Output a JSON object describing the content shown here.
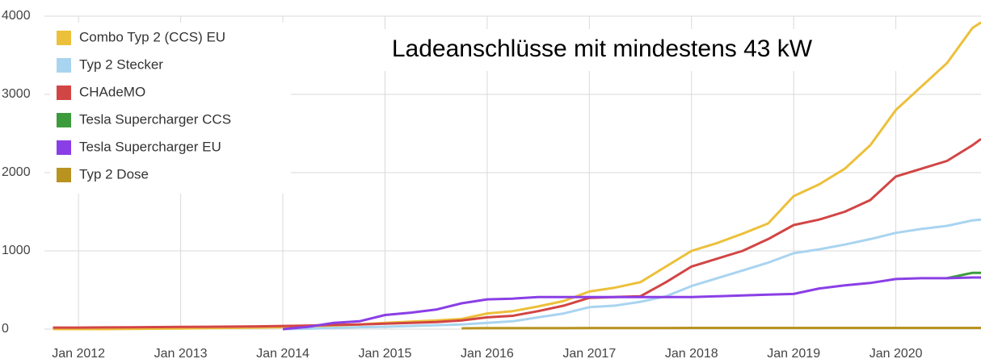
{
  "chart_data": {
    "type": "line",
    "title": "Ladeanschlüsse mit mindestens 43 kW",
    "x": [
      "2011-10",
      "2012-01",
      "2012-04",
      "2012-07",
      "2012-10",
      "2013-01",
      "2013-04",
      "2013-07",
      "2013-10",
      "2014-01",
      "2014-04",
      "2014-07",
      "2014-10",
      "2015-01",
      "2015-04",
      "2015-07",
      "2015-10",
      "2016-01",
      "2016-04",
      "2016-07",
      "2016-10",
      "2017-01",
      "2017-04",
      "2017-07",
      "2017-10",
      "2018-01",
      "2018-04",
      "2018-07",
      "2018-10",
      "2019-01",
      "2019-04",
      "2019-07",
      "2019-10",
      "2020-01",
      "2020-04",
      "2020-07",
      "2020-10",
      "2020-11"
    ],
    "series": [
      {
        "name": "Combo Typ 2 (CCS) EU",
        "color": "#ecc03a",
        "values": [
          0,
          0,
          0,
          2,
          5,
          8,
          12,
          15,
          20,
          25,
          35,
          45,
          60,
          80,
          95,
          110,
          130,
          200,
          230,
          290,
          360,
          480,
          530,
          600,
          800,
          1000,
          1100,
          1220,
          1350,
          1700,
          1850,
          2050,
          2350,
          2800,
          3100,
          3400,
          3850,
          3920
        ]
      },
      {
        "name": "Typ 2 Stecker",
        "color": "#a9d4f0",
        "values": [
          null,
          null,
          null,
          null,
          null,
          null,
          null,
          null,
          null,
          0,
          5,
          15,
          25,
          30,
          40,
          50,
          60,
          80,
          100,
          150,
          200,
          280,
          300,
          350,
          420,
          550,
          650,
          750,
          850,
          970,
          1020,
          1080,
          1150,
          1230,
          1280,
          1320,
          1390,
          1400
        ]
      },
      {
        "name": "CHAdeMO",
        "color": "#d24545",
        "values": [
          20,
          20,
          22,
          24,
          26,
          28,
          30,
          32,
          35,
          40,
          45,
          55,
          60,
          70,
          80,
          90,
          110,
          150,
          170,
          230,
          300,
          400,
          410,
          420,
          600,
          800,
          900,
          1000,
          1150,
          1330,
          1400,
          1500,
          1650,
          1950,
          2050,
          2150,
          2350,
          2430
        ]
      },
      {
        "name": "Tesla Supercharger CCS",
        "color": "#3c9c3c",
        "values": [
          null,
          null,
          null,
          null,
          null,
          null,
          null,
          null,
          null,
          null,
          null,
          null,
          null,
          null,
          null,
          null,
          null,
          null,
          null,
          null,
          null,
          null,
          null,
          null,
          null,
          null,
          null,
          null,
          null,
          null,
          null,
          null,
          null,
          null,
          null,
          650,
          720,
          720
        ]
      },
      {
        "name": "Tesla Supercharger EU",
        "color": "#8a3fe6",
        "values": [
          null,
          null,
          null,
          null,
          null,
          null,
          null,
          null,
          null,
          0,
          30,
          80,
          100,
          180,
          210,
          250,
          330,
          380,
          390,
          410,
          410,
          410,
          410,
          410,
          410,
          410,
          420,
          430,
          440,
          450,
          520,
          560,
          590,
          640,
          650,
          650,
          660,
          660
        ]
      },
      {
        "name": "Typ 2 Dose",
        "color": "#b8931f",
        "values": [
          null,
          null,
          null,
          null,
          null,
          null,
          null,
          null,
          null,
          null,
          null,
          null,
          null,
          null,
          null,
          null,
          10,
          12,
          12,
          13,
          13,
          14,
          14,
          14,
          14,
          15,
          15,
          15,
          15,
          15,
          15,
          15,
          15,
          15,
          15,
          15,
          15,
          15
        ]
      }
    ],
    "xlim": [
      "2011-09",
      "2020-11"
    ],
    "xticks": [
      {
        "value": "2012-01",
        "label": "Jan 2012"
      },
      {
        "value": "2013-01",
        "label": "Jan 2013"
      },
      {
        "value": "2014-01",
        "label": "Jan 2014"
      },
      {
        "value": "2015-01",
        "label": "Jan 2015"
      },
      {
        "value": "2016-01",
        "label": "Jan 2016"
      },
      {
        "value": "2017-01",
        "label": "Jan 2017"
      },
      {
        "value": "2018-01",
        "label": "Jan 2018"
      },
      {
        "value": "2019-01",
        "label": "Jan 2019"
      },
      {
        "value": "2020-01",
        "label": "Jan 2020"
      }
    ],
    "ylim": [
      0,
      4000
    ],
    "yticks": [
      0,
      1000,
      2000,
      3000,
      4000
    ],
    "grid": true,
    "legend": "top-left"
  }
}
